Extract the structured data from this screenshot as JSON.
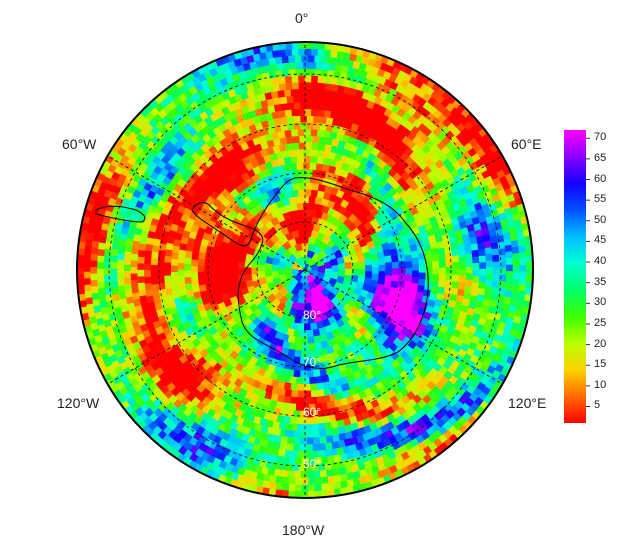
{
  "map": {
    "projection": "south-polar-stereographic",
    "longitude_labels": {
      "top": "0°",
      "upper_left": "60°W",
      "upper_right": "60°E",
      "lower_left": "120°W",
      "lower_right": "120°E",
      "bottom": "180°W"
    },
    "latitude_labels": [
      "80°",
      "70°",
      "60°",
      "50°"
    ],
    "grid": "dashed graticule",
    "coastlines": true,
    "field_description": "gridded scalar field, banded ring structure, low values over Southern Ocean, high values over East Antarctic plateau"
  },
  "colorbar": {
    "ticks": [
      "70",
      "65",
      "60",
      "55",
      "50",
      "45",
      "40",
      "35",
      "30",
      "25",
      "20",
      "15",
      "10",
      "5"
    ],
    "range": [
      1,
      72
    ],
    "colormap": [
      "#ff0000",
      "#ff6a00",
      "#ffd200",
      "#b7ff00",
      "#3cff00",
      "#00ff6a",
      "#00ffd2",
      "#00bfff",
      "#0050ff",
      "#1400ff",
      "#8c00ff",
      "#ff00ff"
    ]
  }
}
